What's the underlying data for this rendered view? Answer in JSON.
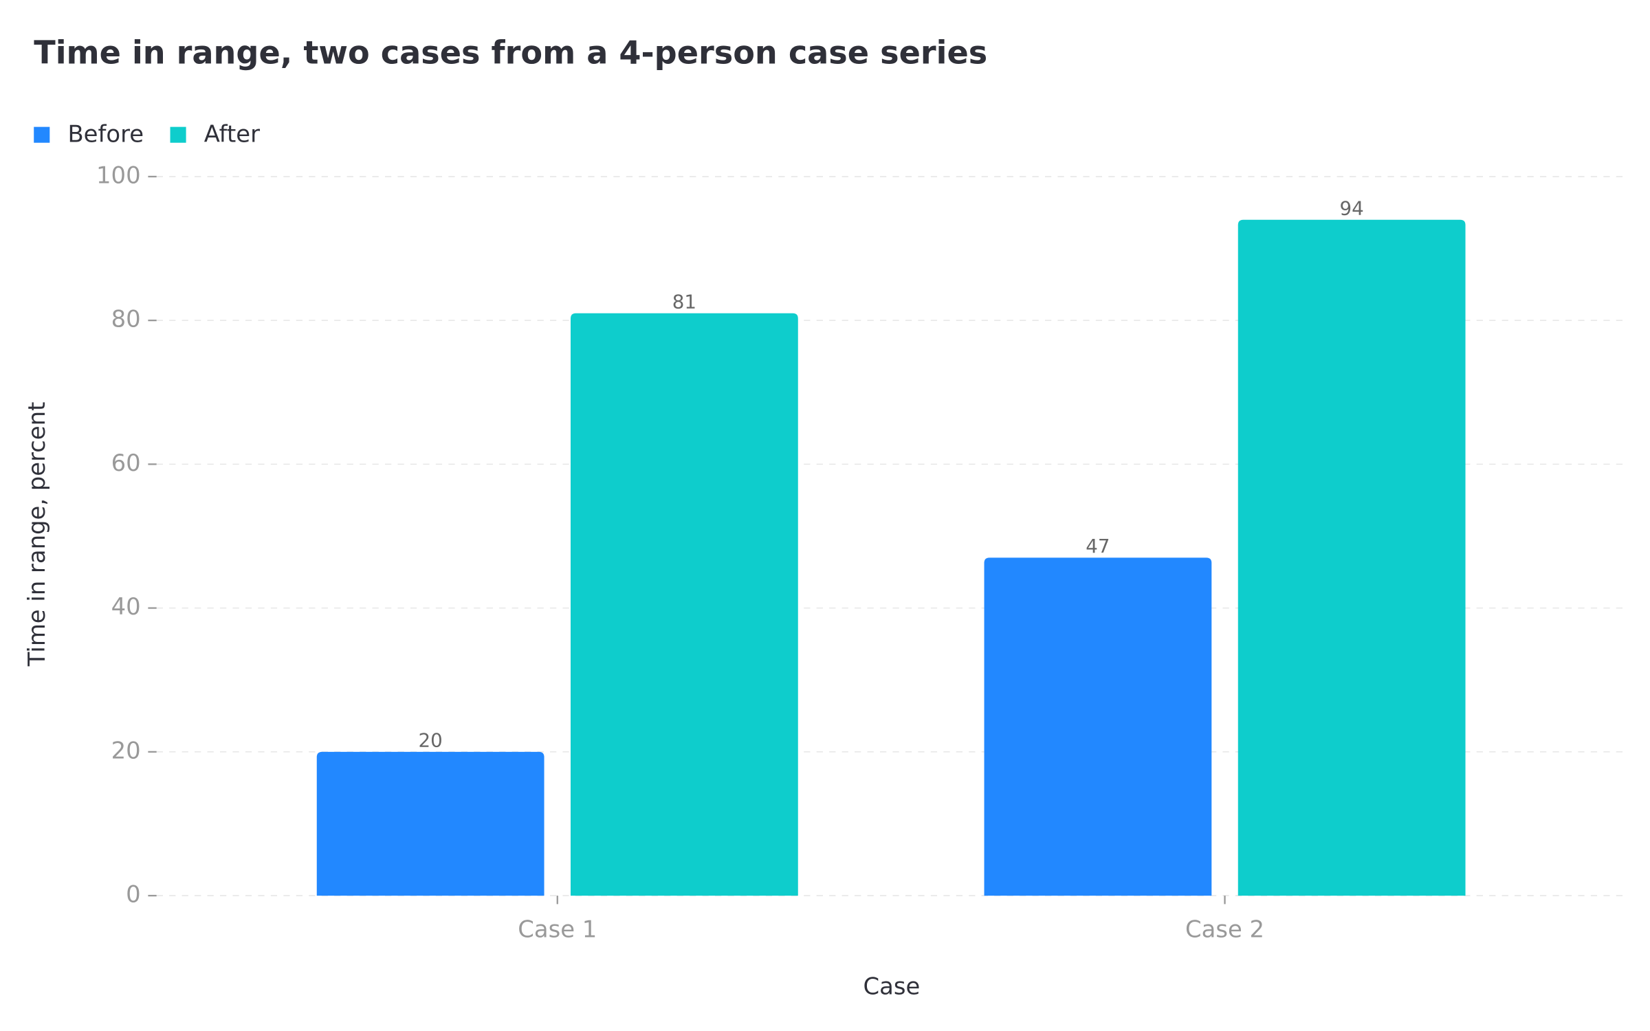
{
  "chart_data": {
    "type": "bar",
    "title": "Time in range, two cases from a 4-person case series",
    "x_label": "Case",
    "y_label": "Time in range, percent",
    "categories": [
      "Case 1",
      "Case 2"
    ],
    "series": [
      {
        "name": "Before",
        "color": "#2288ff",
        "values": [
          20,
          47
        ]
      },
      {
        "name": "After",
        "color": "#0ecdcc",
        "values": [
          81,
          94
        ]
      }
    ],
    "ylim": [
      0,
      100
    ],
    "yticks": [
      0,
      20,
      40,
      60,
      80,
      100
    ],
    "grid": true,
    "legend": "top-left"
  }
}
